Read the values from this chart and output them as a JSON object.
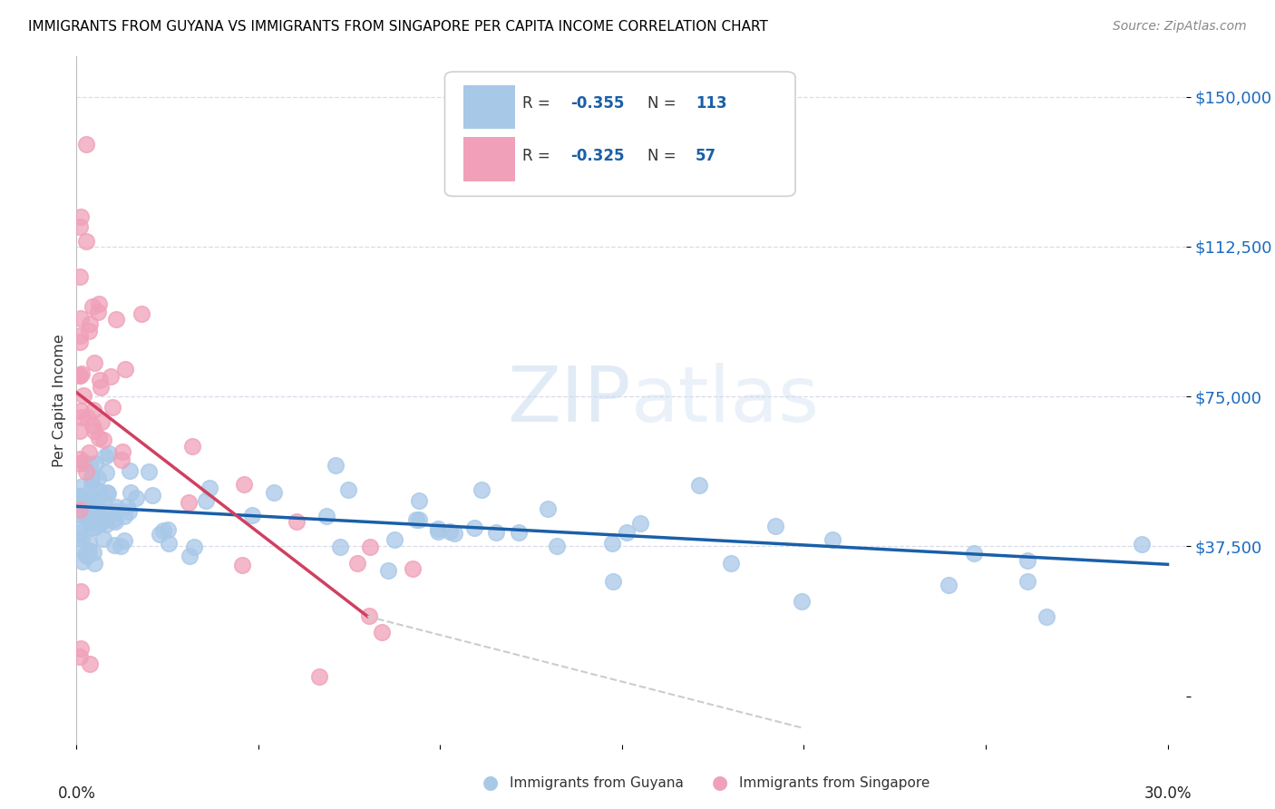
{
  "title": "IMMIGRANTS FROM GUYANA VS IMMIGRANTS FROM SINGAPORE PER CAPITA INCOME CORRELATION CHART",
  "source": "Source: ZipAtlas.com",
  "ylabel": "Per Capita Income",
  "xlim": [
    0.0,
    0.305
  ],
  "ylim": [
    -12000,
    160000
  ],
  "yticks": [
    0,
    37500,
    75000,
    112500,
    150000
  ],
  "ytick_labels": [
    "",
    "$37,500",
    "$75,000",
    "$112,500",
    "$150,000"
  ],
  "watermark": "ZIPatlas",
  "legend_r1": "-0.355",
  "legend_n1": "113",
  "legend_r2": "-0.325",
  "legend_n2": "57",
  "legend_label1": "Immigrants from Guyana",
  "legend_label2": "Immigrants from Singapore",
  "color_guyana": "#a8c8e8",
  "color_singapore": "#f0a0b8",
  "color_line_guyana": "#1a5fa8",
  "color_line_singapore": "#d04060",
  "color_line_ext": "#cccccc",
  "guyana_line": [
    [
      0.0,
      47500
    ],
    [
      0.3,
      33000
    ]
  ],
  "singapore_line_solid": [
    [
      0.0,
      76000
    ],
    [
      0.08,
      20000
    ]
  ],
  "singapore_line_dashed": [
    [
      0.08,
      20000
    ],
    [
      0.2,
      -8000
    ]
  ]
}
